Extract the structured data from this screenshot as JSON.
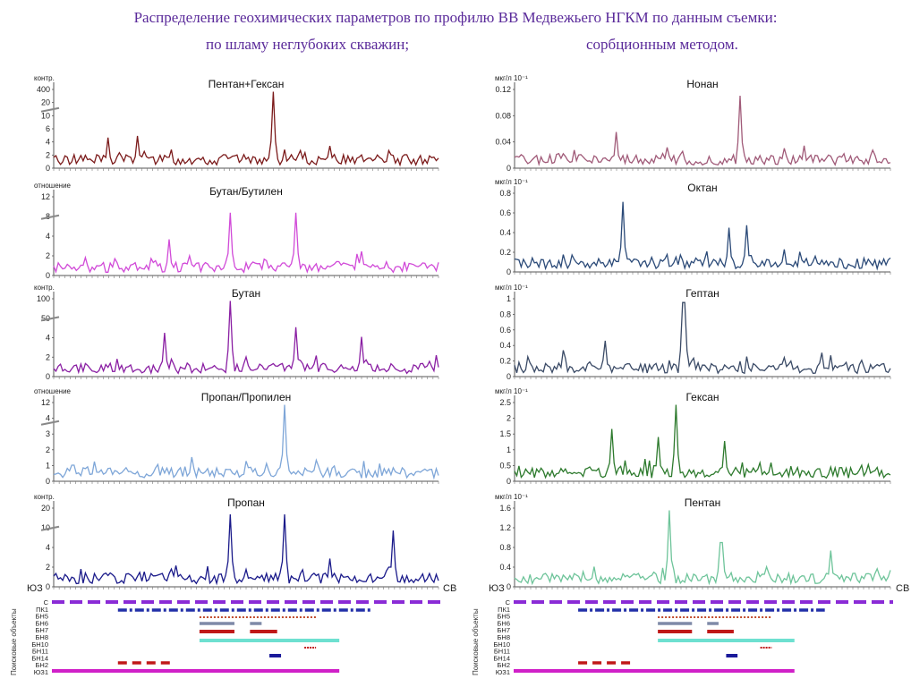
{
  "header": {
    "title": "Распределение геохимических параметров по профилю ВВ Медвежьего НГКМ по данным съемки:",
    "left_subtitle": "по шламу неглубоких скважин;",
    "right_subtitle": "сорбционным методом."
  },
  "chart_data": [
    {
      "type": "line",
      "title": "Пентан+Гексан",
      "ylabel": "контр.",
      "yticks": [
        "400",
        "20",
        "10",
        "6",
        "4",
        "2",
        "0"
      ],
      "color": "#7b1a1a",
      "peaks": [
        [
          0.57,
          0.95
        ],
        [
          0.22,
          0.4
        ],
        [
          0.14,
          0.38
        ],
        [
          0.64,
          0.22
        ]
      ]
    },
    {
      "type": "line",
      "title": "Бутан/Бутилен",
      "ylabel": "отношение",
      "yticks": [
        "12",
        "8",
        "4",
        "2",
        "0"
      ],
      "color": "#d14ad8",
      "peaks": [
        [
          0.63,
          0.78
        ],
        [
          0.46,
          0.78
        ],
        [
          0.3,
          0.45
        ],
        [
          0.8,
          0.3
        ]
      ]
    },
    {
      "type": "line",
      "title": "Бутан",
      "ylabel": "контр.",
      "yticks": [
        "100",
        "50",
        "4",
        "2",
        "0"
      ],
      "color": "#8a1fa3",
      "peaks": [
        [
          0.46,
          0.95
        ],
        [
          0.63,
          0.62
        ],
        [
          0.29,
          0.55
        ],
        [
          0.8,
          0.5
        ]
      ]
    },
    {
      "type": "line",
      "title": "Пропан/Пропилен",
      "ylabel": "отношение",
      "yticks": [
        "12",
        "4",
        "3",
        "2",
        "1",
        "0"
      ],
      "color": "#7ea6d8",
      "peaks": [
        [
          0.6,
          0.95
        ],
        [
          0.36,
          0.3
        ],
        [
          0.05,
          0.2
        ],
        [
          0.5,
          0.25
        ]
      ]
    },
    {
      "type": "line",
      "title": "Пропан",
      "ylabel": "контр.",
      "yticks": [
        "20",
        "10",
        "4",
        "2",
        "0"
      ],
      "color": "#1a1a8a",
      "peaks": [
        [
          0.46,
          0.9
        ],
        [
          0.6,
          0.9
        ],
        [
          0.88,
          0.7
        ],
        [
          0.72,
          0.35
        ]
      ]
    },
    {
      "type": "line",
      "title": "Нонан",
      "ylabel": "мкг/л 10⁻¹",
      "yticks": [
        "0.12",
        "0.08",
        "0.04",
        "0"
      ],
      "color": "#a05a78",
      "peaks": [
        [
          0.6,
          0.9
        ],
        [
          0.27,
          0.45
        ],
        [
          0.77,
          0.28
        ],
        [
          0.13,
          0.18
        ]
      ]
    },
    {
      "type": "line",
      "title": "Октан",
      "ylabel": "мкг/л 10⁻¹",
      "yticks": [
        "0.8",
        "0.6",
        "0.4",
        "0.2",
        "0"
      ],
      "color": "#2b4a78",
      "peaks": [
        [
          0.29,
          0.87
        ],
        [
          0.62,
          0.58
        ],
        [
          0.57,
          0.55
        ],
        [
          0.72,
          0.28
        ]
      ]
    },
    {
      "type": "line",
      "title": "Гептан",
      "ylabel": "мкг/л 10⁻¹",
      "yticks": [
        "1",
        "0.8",
        "0.6",
        "0.4",
        "0.2",
        "0"
      ],
      "color": "#3a4a66",
      "peaks": [
        [
          0.45,
          0.93
        ],
        [
          0.24,
          0.45
        ],
        [
          0.13,
          0.33
        ],
        [
          0.82,
          0.3
        ]
      ]
    },
    {
      "type": "line",
      "title": "Гексан",
      "ylabel": "мкг/л 10⁻¹",
      "yticks": [
        "2.5",
        "2",
        "1.5",
        "1",
        "0.5",
        "0"
      ],
      "color": "#2d7a2d",
      "peaks": [
        [
          0.43,
          0.95
        ],
        [
          0.26,
          0.65
        ],
        [
          0.38,
          0.55
        ],
        [
          0.56,
          0.5
        ]
      ]
    },
    {
      "type": "line",
      "title": "Пентан",
      "ylabel": "мкг/л 10⁻¹",
      "yticks": [
        "1.6",
        "1.2",
        "0.8",
        "0.4",
        "0"
      ],
      "color": "#6ec49a",
      "peaks": [
        [
          0.41,
          0.95
        ],
        [
          0.55,
          0.55
        ],
        [
          0.84,
          0.45
        ],
        [
          0.21,
          0.25
        ]
      ]
    }
  ],
  "objects": {
    "axis_label": "Поисковые объекты",
    "sw": "ЮЗ",
    "ne": "СВ",
    "rows_left": [
      "С",
      "ПК1",
      "БН5",
      "БН6",
      "БН7",
      "БН8",
      "БН10",
      "БН11",
      "БН14",
      "БН2",
      "ЮЗ1"
    ],
    "rows_right": [
      "С",
      "ПК1",
      "БН5",
      "БН6",
      "БН7",
      "БН8",
      "БН10",
      "БН11",
      "БН14",
      "БН2",
      "ЮЗ1"
    ]
  }
}
